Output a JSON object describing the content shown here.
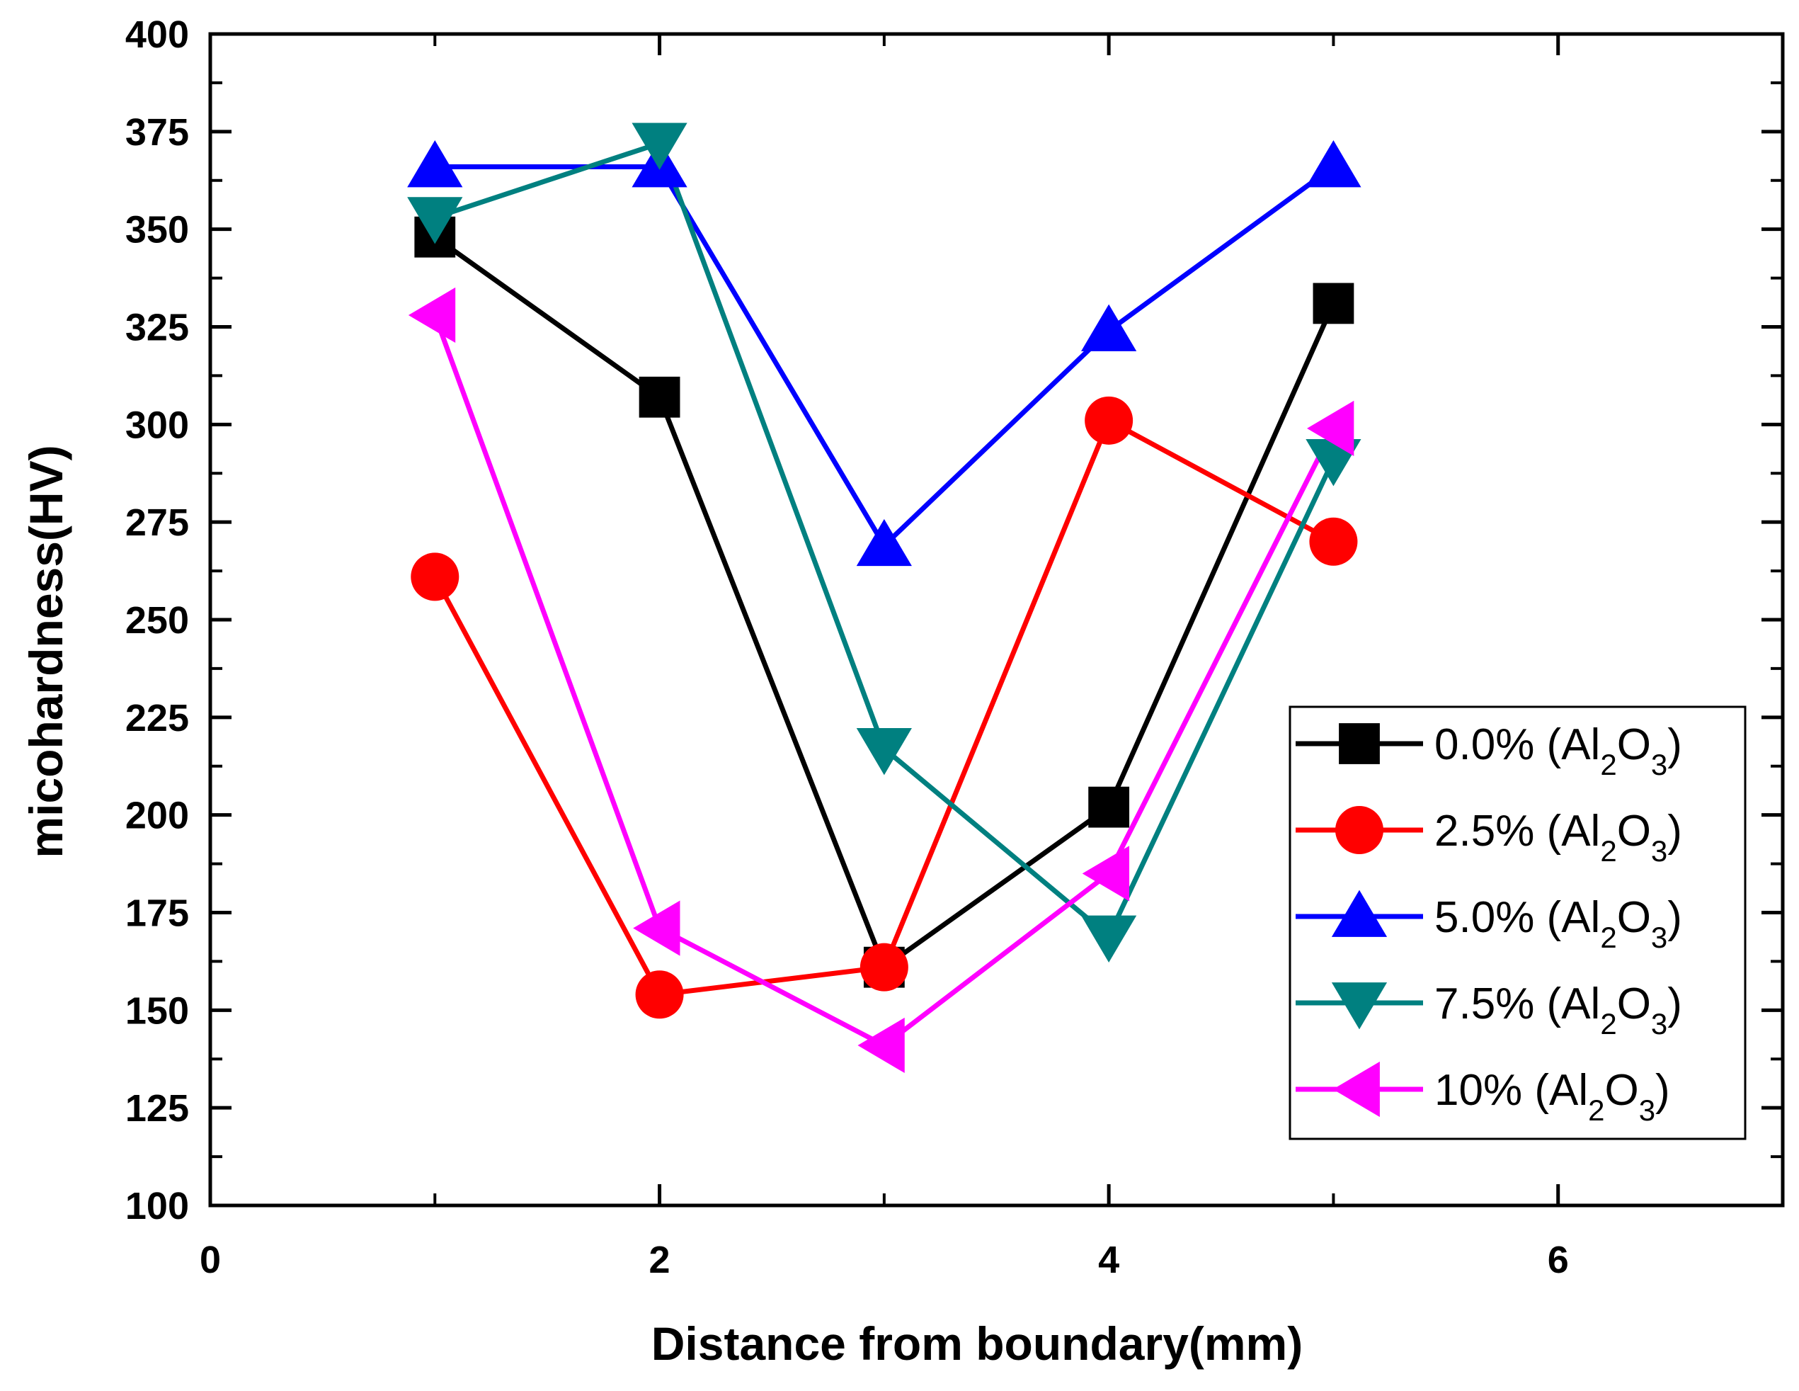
{
  "chart_data": {
    "type": "line",
    "title": "",
    "xlabel": "Distance from boundary(mm)",
    "ylabel": "micohardness(HV)",
    "xlim": [
      0,
      7
    ],
    "ylim": [
      100,
      400
    ],
    "x_ticks": [
      0,
      2,
      4,
      6
    ],
    "x_tick_labels": [
      "0",
      "2",
      "4",
      "6"
    ],
    "y_ticks": [
      100,
      125,
      150,
      175,
      200,
      225,
      250,
      275,
      300,
      325,
      350,
      375,
      400
    ],
    "y_tick_labels": [
      "100",
      "125",
      "150",
      "175",
      "200",
      "225",
      "250",
      "275",
      "300",
      "325",
      "350",
      "375",
      "400"
    ],
    "grid": false,
    "legend_position": "bottom-right",
    "x": [
      1,
      2,
      3,
      4,
      5
    ],
    "series": [
      {
        "name": "0.0% (Al2O3)",
        "label_main": "0.0% (Al",
        "marker": "square",
        "color": "#000000",
        "values": [
          348,
          307,
          161,
          202,
          331
        ]
      },
      {
        "name": "2.5% (Al2O3)",
        "label_main": "2.5% (Al",
        "marker": "circle",
        "color": "#ff0000",
        "values": [
          261,
          154,
          161,
          301,
          270
        ]
      },
      {
        "name": "5.0% (Al2O3)",
        "label_main": "5.0% (Al",
        "marker": "triangle-up",
        "color": "#0000ff",
        "values": [
          366,
          366,
          269,
          324,
          366
        ]
      },
      {
        "name": "7.5% (Al2O3)",
        "label_main": "7.5% (Al",
        "marker": "triangle-down",
        "color": "#008080",
        "values": [
          353,
          372,
          217,
          169,
          291
        ]
      },
      {
        "name": "10% (Al2O3)",
        "label_main": "10% (Al",
        "marker": "triangle-left",
        "color": "#ff00ff",
        "values": [
          328,
          171,
          141,
          185,
          299
        ]
      }
    ],
    "legend_sub_2": "2",
    "legend_o": "O",
    "legend_sub_3": "3",
    "legend_close": ")"
  }
}
